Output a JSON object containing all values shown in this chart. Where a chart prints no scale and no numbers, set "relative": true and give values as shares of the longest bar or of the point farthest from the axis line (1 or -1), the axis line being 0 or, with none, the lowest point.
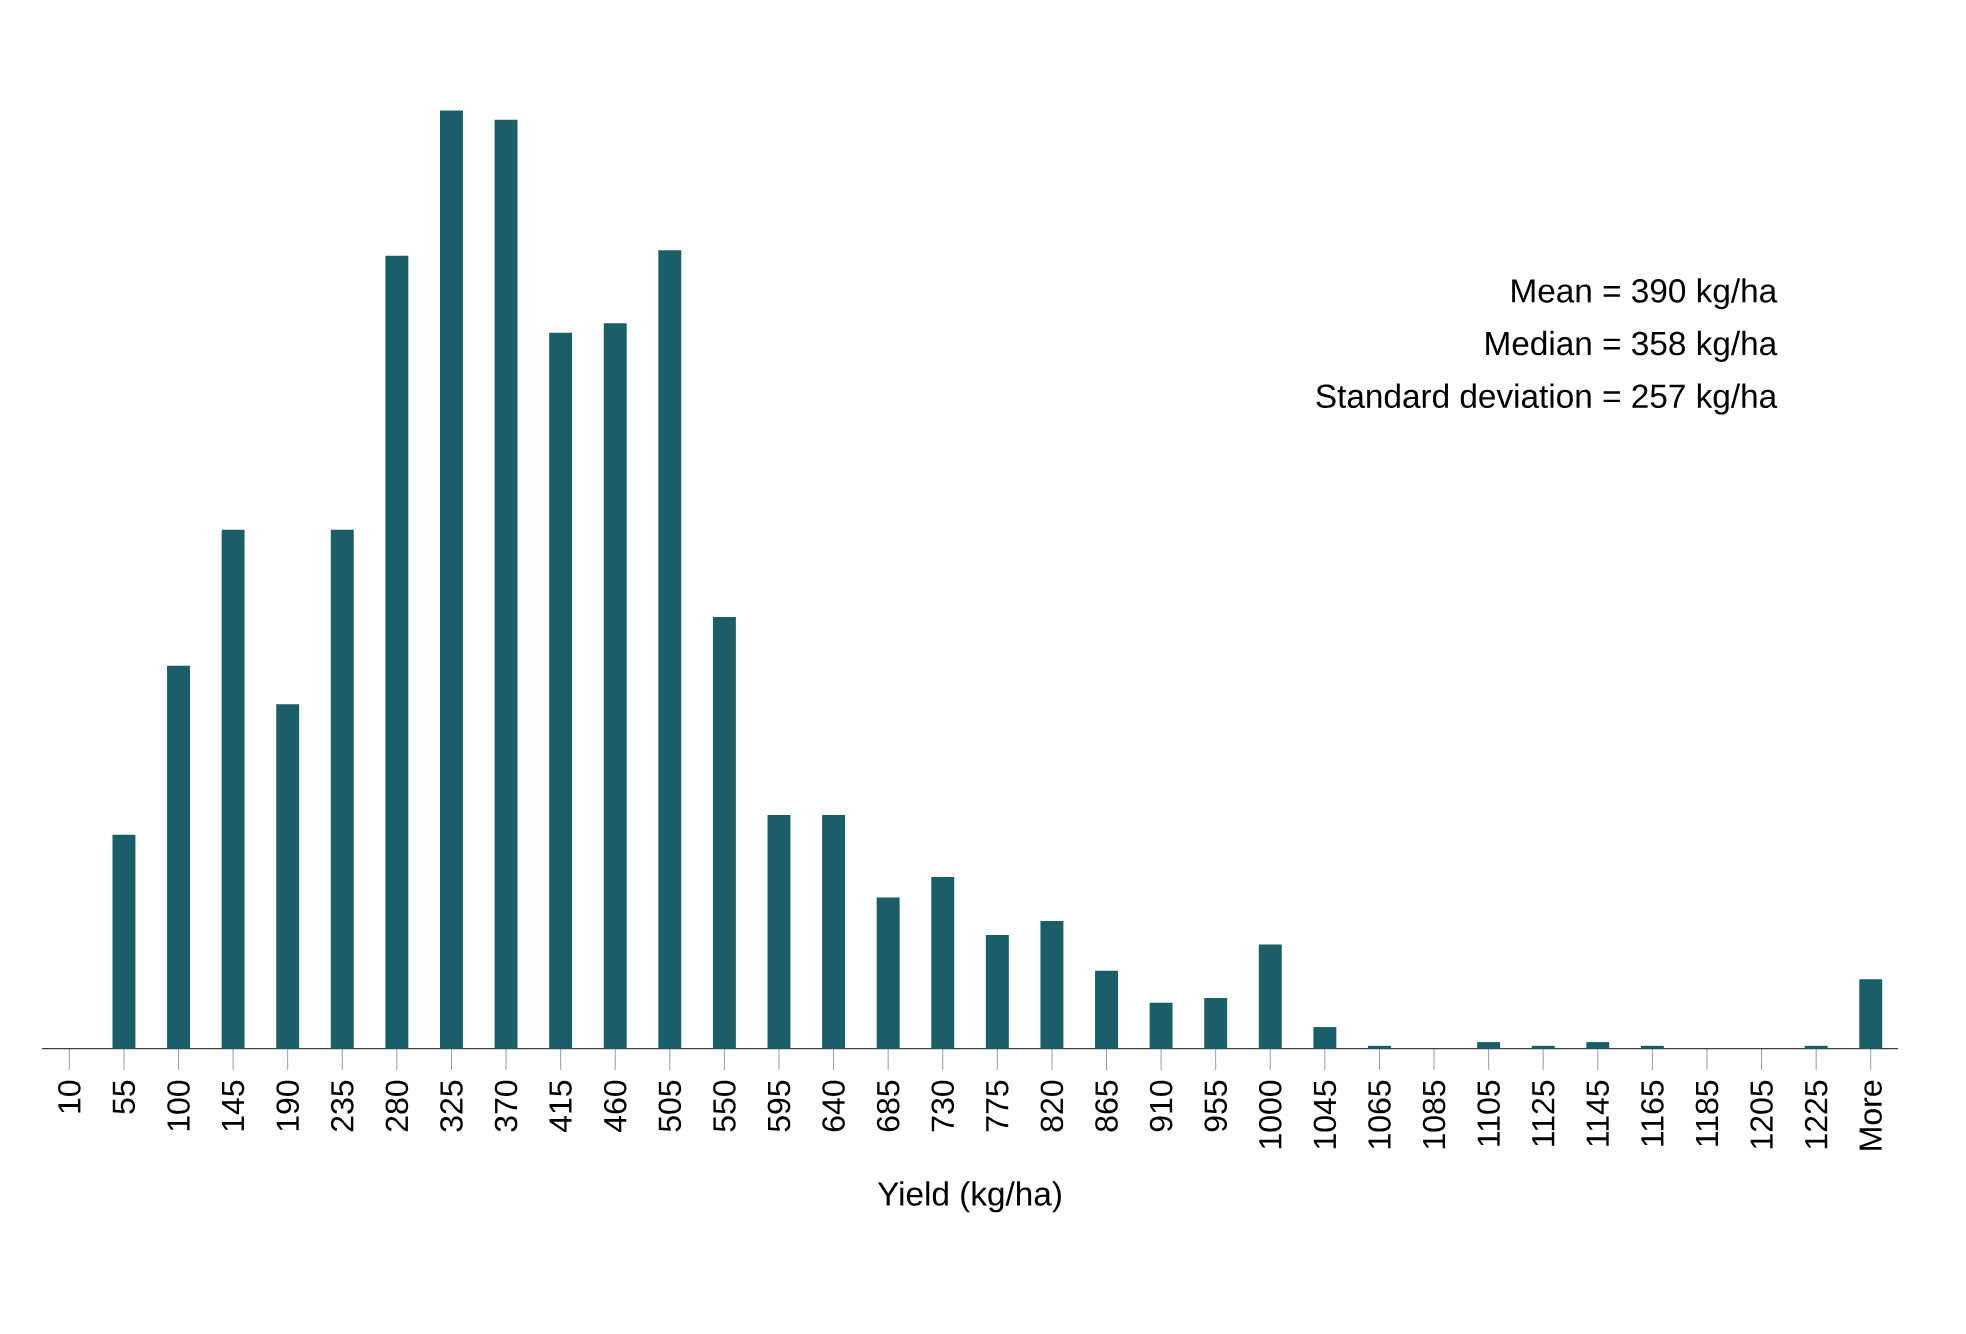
{
  "chart_data": {
    "type": "bar",
    "xlabel": "Yield (kg/ha)",
    "relative": true,
    "categories": [
      "10",
      "55",
      "100",
      "145",
      "190",
      "235",
      "280",
      "325",
      "370",
      "415",
      "460",
      "505",
      "550",
      "595",
      "640",
      "685",
      "730",
      "775",
      "820",
      "865",
      "910",
      "955",
      "1000",
      "1045",
      "1065",
      "1085",
      "1105",
      "1125",
      "1145",
      "1165",
      "1185",
      "1205",
      "1225",
      "More"
    ],
    "values": [
      0,
      0.228,
      0.408,
      0.553,
      0.367,
      0.553,
      0.845,
      1,
      0.99,
      0.763,
      0.773,
      0.851,
      0.46,
      0.249,
      0.249,
      0.161,
      0.183,
      0.121,
      0.136,
      0.083,
      0.049,
      0.054,
      0.111,
      0.023,
      0.003,
      0,
      0.007,
      0.003,
      0.007,
      0.003,
      0,
      0,
      0.003,
      0.074
    ],
    "color": "#1a5e68",
    "annotations": [
      "Mean = 390 kg/ha",
      "Median = 358 kg/ha",
      "Standard deviation = 257 kg/ha"
    ],
    "marker": "none"
  }
}
